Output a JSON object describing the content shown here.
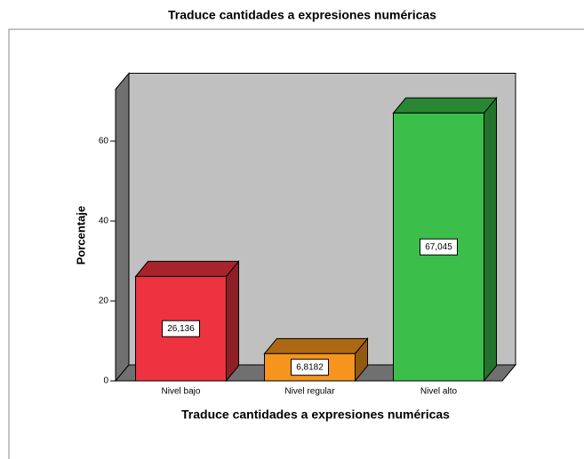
{
  "chart_data": {
    "type": "bar3d",
    "title": "Traduce cantidades a expresiones numéricas",
    "x_label": "Traduce cantidades a expresiones numéricas",
    "y_label": "Porcentaje",
    "categories": [
      "Nivel bajo",
      "Nivel regular",
      "Nivel alto"
    ],
    "values": [
      26.136,
      6.8182,
      67.045
    ],
    "value_labels": [
      "26,136",
      "6,8182",
      "67,045"
    ],
    "colors": [
      "#ee3340",
      "#f7941d",
      "#3cbf4a"
    ],
    "ylim": [
      0,
      73
    ],
    "yticks": [
      0,
      20,
      40,
      60
    ]
  }
}
